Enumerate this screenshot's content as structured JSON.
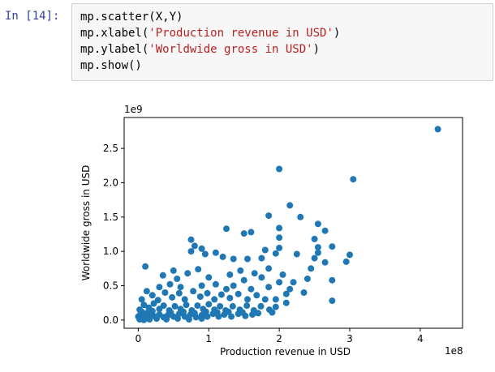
{
  "cell": {
    "prompt": "In [14]:",
    "lines": [
      {
        "plain": "mp.scatter(X,Y)",
        "pre": "",
        "str": "",
        "post": ""
      },
      {
        "plain": "",
        "pre": "mp.xlabel(",
        "str": "'Production revenue in USD'",
        "post": ")"
      },
      {
        "plain": "",
        "pre": "mp.ylabel(",
        "str": "'Worldwide gross in USD'",
        "post": ")"
      },
      {
        "plain": "mp.show()",
        "pre": "",
        "str": "",
        "post": ""
      }
    ]
  },
  "colors": {
    "prompt": "#303f9f",
    "string": "#ba2121",
    "marker": "#1f77b4",
    "cell_bg": "#f7f7f7"
  },
  "chart_data": {
    "type": "scatter",
    "title": "",
    "xlabel": "Production revenue in USD",
    "ylabel": "Worldwide gross in USD",
    "x_offset_label": "1e8",
    "y_offset_label": "1e9",
    "x_scale": 100000000,
    "y_scale": 1000000000,
    "xlim": [
      -0.2,
      4.6
    ],
    "ylim": [
      -0.12,
      2.95
    ],
    "xticks": [
      0,
      1,
      2,
      3,
      4
    ],
    "xtick_labels": [
      "0",
      "1",
      "2",
      "3",
      "4"
    ],
    "yticks": [
      0.0,
      0.5,
      1.0,
      1.5,
      2.0,
      2.5
    ],
    "ytick_labels": [
      "0.0",
      "0.5",
      "1.0",
      "1.5",
      "2.0",
      "2.5"
    ],
    "grid": false,
    "points": [
      [
        4.25,
        2.78
      ],
      [
        2.0,
        2.2
      ],
      [
        3.05,
        2.05
      ],
      [
        2.15,
        1.67
      ],
      [
        1.85,
        1.52
      ],
      [
        2.3,
        1.5
      ],
      [
        1.25,
        1.33
      ],
      [
        1.6,
        1.28
      ],
      [
        2.55,
        1.4
      ],
      [
        2.65,
        1.3
      ],
      [
        2.0,
        1.34
      ],
      [
        1.5,
        1.26
      ],
      [
        0.75,
        1.17
      ],
      [
        2.0,
        1.2
      ],
      [
        2.5,
        1.18
      ],
      [
        0.8,
        1.08
      ],
      [
        2.55,
        1.06
      ],
      [
        2.75,
        1.07
      ],
      [
        3.0,
        0.95
      ],
      [
        2.0,
        1.05
      ],
      [
        1.8,
        1.02
      ],
      [
        0.9,
        1.04
      ],
      [
        1.1,
        0.98
      ],
      [
        0.75,
        1.0
      ],
      [
        1.2,
        0.92
      ],
      [
        0.95,
        0.96
      ],
      [
        1.35,
        0.89
      ],
      [
        1.55,
        0.89
      ],
      [
        1.75,
        0.9
      ],
      [
        1.95,
        0.97
      ],
      [
        2.25,
        0.96
      ],
      [
        2.55,
        0.98
      ],
      [
        2.5,
        0.9
      ],
      [
        2.65,
        0.84
      ],
      [
        2.95,
        0.85
      ],
      [
        2.45,
        0.75
      ],
      [
        2.75,
        0.58
      ],
      [
        2.35,
        0.4
      ],
      [
        2.75,
        0.28
      ],
      [
        2.1,
        0.38
      ],
      [
        1.95,
        0.3
      ],
      [
        1.95,
        0.19
      ],
      [
        0.1,
        0.78
      ],
      [
        0.35,
        0.65
      ],
      [
        0.5,
        0.72
      ],
      [
        0.55,
        0.6
      ],
      [
        0.45,
        0.52
      ],
      [
        0.7,
        0.68
      ],
      [
        0.85,
        0.74
      ],
      [
        1.0,
        0.62
      ],
      [
        1.3,
        0.66
      ],
      [
        1.45,
        0.72
      ],
      [
        1.65,
        0.68
      ],
      [
        1.75,
        0.62
      ],
      [
        1.85,
        0.75
      ],
      [
        2.05,
        0.66
      ],
      [
        2.2,
        0.55
      ],
      [
        2.4,
        0.6
      ],
      [
        1.6,
        0.45
      ],
      [
        1.85,
        0.48
      ],
      [
        2.15,
        0.45
      ],
      [
        0.3,
        0.48
      ],
      [
        0.6,
        0.48
      ],
      [
        0.9,
        0.5
      ],
      [
        1.1,
        0.52
      ],
      [
        1.25,
        0.45
      ],
      [
        1.35,
        0.5
      ],
      [
        1.5,
        0.58
      ],
      [
        2.0,
        0.55
      ],
      [
        2.1,
        0.25
      ],
      [
        0.05,
        0.3
      ],
      [
        0.12,
        0.42
      ],
      [
        0.2,
        0.36
      ],
      [
        0.28,
        0.29
      ],
      [
        0.38,
        0.4
      ],
      [
        0.48,
        0.33
      ],
      [
        0.58,
        0.39
      ],
      [
        0.66,
        0.3
      ],
      [
        0.78,
        0.42
      ],
      [
        0.88,
        0.34
      ],
      [
        0.98,
        0.39
      ],
      [
        1.08,
        0.3
      ],
      [
        1.18,
        0.37
      ],
      [
        1.3,
        0.32
      ],
      [
        1.42,
        0.38
      ],
      [
        1.55,
        0.3
      ],
      [
        1.68,
        0.36
      ],
      [
        1.8,
        0.3
      ],
      [
        0.02,
        0.15
      ],
      [
        0.08,
        0.22
      ],
      [
        0.15,
        0.18
      ],
      [
        0.22,
        0.24
      ],
      [
        0.3,
        0.16
      ],
      [
        0.36,
        0.21
      ],
      [
        0.44,
        0.14
      ],
      [
        0.52,
        0.2
      ],
      [
        0.6,
        0.16
      ],
      [
        0.68,
        0.22
      ],
      [
        0.76,
        0.14
      ],
      [
        0.84,
        0.21
      ],
      [
        0.92,
        0.16
      ],
      [
        1.0,
        0.23
      ],
      [
        1.08,
        0.15
      ],
      [
        1.16,
        0.2
      ],
      [
        1.24,
        0.14
      ],
      [
        1.34,
        0.2
      ],
      [
        1.44,
        0.15
      ],
      [
        1.54,
        0.21
      ],
      [
        1.64,
        0.14
      ],
      [
        1.74,
        0.2
      ],
      [
        1.86,
        0.15
      ],
      [
        0.0,
        0.05
      ],
      [
        0.03,
        0.08
      ],
      [
        0.06,
        0.03
      ],
      [
        0.1,
        0.07
      ],
      [
        0.14,
        0.04
      ],
      [
        0.18,
        0.09
      ],
      [
        0.24,
        0.05
      ],
      [
        0.3,
        0.08
      ],
      [
        0.36,
        0.04
      ],
      [
        0.42,
        0.07
      ],
      [
        0.5,
        0.05
      ],
      [
        0.58,
        0.09
      ],
      [
        0.66,
        0.05
      ],
      [
        0.74,
        0.08
      ],
      [
        0.82,
        0.04
      ],
      [
        0.9,
        0.07
      ],
      [
        0.98,
        0.05
      ],
      [
        1.06,
        0.09
      ],
      [
        1.14,
        0.05
      ],
      [
        1.22,
        0.08
      ],
      [
        1.32,
        0.05
      ],
      [
        1.42,
        0.09
      ],
      [
        1.52,
        0.06
      ],
      [
        1.62,
        0.08
      ],
      [
        0.02,
        0.01
      ],
      [
        0.08,
        0.0
      ],
      [
        0.16,
        0.01
      ],
      [
        0.26,
        0.02
      ],
      [
        0.4,
        0.01
      ],
      [
        0.56,
        0.02
      ],
      [
        0.72,
        0.01
      ],
      [
        0.9,
        0.02
      ],
      [
        0.05,
        0.12
      ],
      [
        0.12,
        0.1
      ],
      [
        0.2,
        0.13
      ],
      [
        0.46,
        0.11
      ],
      [
        0.64,
        0.12
      ],
      [
        0.8,
        0.1
      ],
      [
        0.96,
        0.12
      ],
      [
        1.12,
        0.11
      ],
      [
        1.28,
        0.12
      ],
      [
        1.48,
        0.11
      ],
      [
        1.7,
        0.1
      ],
      [
        1.9,
        0.11
      ]
    ]
  }
}
